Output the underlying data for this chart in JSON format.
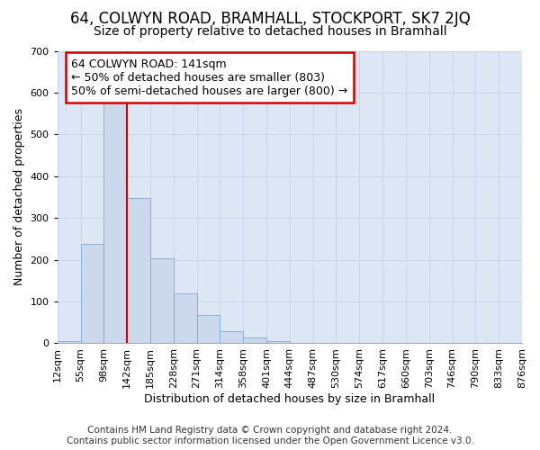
{
  "title": "64, COLWYN ROAD, BRAMHALL, STOCKPORT, SK7 2JQ",
  "subtitle": "Size of property relative to detached houses in Bramhall",
  "xlabel": "Distribution of detached houses by size in Bramhall",
  "ylabel": "Number of detached properties",
  "footer_line1": "Contains HM Land Registry data © Crown copyright and database right 2024.",
  "footer_line2": "Contains public sector information licensed under the Open Government Licence v3.0.",
  "annotation_line1": "64 COLWYN ROAD: 141sqm",
  "annotation_line2": "← 50% of detached houses are smaller (803)",
  "annotation_line3": "50% of semi-detached houses are larger (800) →",
  "bar_values": [
    5,
    237,
    590,
    348,
    203,
    120,
    68,
    28,
    13,
    5,
    0,
    0,
    0,
    0,
    0,
    0,
    0,
    0,
    0,
    0
  ],
  "bin_labels": [
    "12sqm",
    "55sqm",
    "98sqm",
    "142sqm",
    "185sqm",
    "228sqm",
    "271sqm",
    "314sqm",
    "358sqm",
    "401sqm",
    "444sqm",
    "487sqm",
    "530sqm",
    "574sqm",
    "617sqm",
    "660sqm",
    "703sqm",
    "746sqm",
    "790sqm",
    "833sqm",
    "876sqm"
  ],
  "bar_color": "#ccd9ed",
  "bar_edgecolor": "#7fa8d0",
  "vline_x": 3.0,
  "vline_color": "#cc0000",
  "annotation_box_edgecolor": "#cc0000",
  "ylim": [
    0,
    700
  ],
  "yticks": [
    0,
    100,
    200,
    300,
    400,
    500,
    600,
    700
  ],
  "grid_color": "#c8d4e8",
  "background_color": "#dde6f5",
  "title_fontsize": 12,
  "subtitle_fontsize": 10,
  "annotation_fontsize": 9,
  "tick_fontsize": 8,
  "xlabel_fontsize": 9,
  "ylabel_fontsize": 9,
  "footer_fontsize": 7.5
}
